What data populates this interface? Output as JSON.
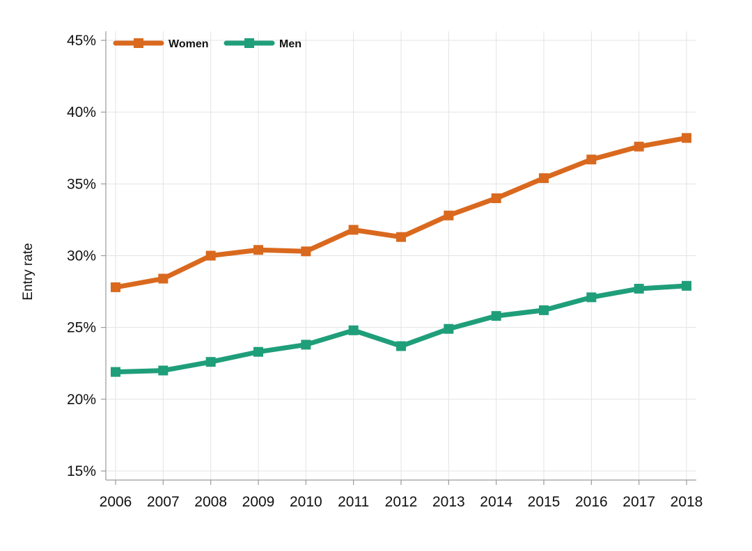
{
  "chart_data": {
    "type": "line",
    "title": "",
    "xlabel": "",
    "ylabel": "Entry rate",
    "x": [
      2006,
      2007,
      2008,
      2009,
      2010,
      2011,
      2012,
      2013,
      2014,
      2015,
      2016,
      2017,
      2018
    ],
    "x_tick_labels": [
      "2006",
      "2007",
      "2008",
      "2009",
      "2010",
      "2011",
      "2012",
      "2013",
      "2014",
      "2015",
      "2016",
      "2017",
      "2018"
    ],
    "ylim": [
      15,
      45
    ],
    "y_ticks": [
      15,
      20,
      25,
      30,
      35,
      40,
      45
    ],
    "y_tick_labels": [
      "15%",
      "20%",
      "25%",
      "30%",
      "35%",
      "40%",
      "45%"
    ],
    "grid": true,
    "legend_position": "top-left",
    "series": [
      {
        "name": "Women",
        "color": "#d9691e",
        "values": [
          27.8,
          28.4,
          30.0,
          30.4,
          30.3,
          31.8,
          31.3,
          32.8,
          34.0,
          35.4,
          36.7,
          37.6,
          38.2
        ]
      },
      {
        "name": "Men",
        "color": "#1f9e7a",
        "values": [
          21.9,
          22.0,
          22.6,
          23.3,
          23.8,
          24.8,
          23.7,
          24.9,
          25.8,
          26.2,
          27.1,
          27.7,
          27.9
        ]
      }
    ]
  }
}
